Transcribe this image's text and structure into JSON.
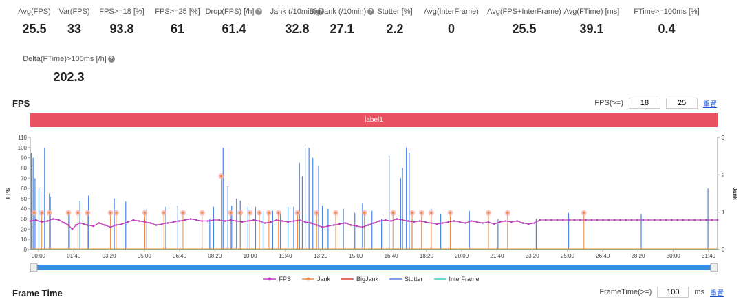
{
  "metrics": [
    {
      "label": "Avg(FPS)",
      "value": "25.5",
      "help": false
    },
    {
      "label": "Var(FPS)",
      "value": "33",
      "help": false
    },
    {
      "label": "FPS>=18 [%]",
      "value": "93.8",
      "help": false
    },
    {
      "label": "FPS>=25 [%]",
      "value": "61",
      "help": false
    },
    {
      "label": "Drop(FPS) [/h]",
      "value": "61.4",
      "help": true
    },
    {
      "label": "Jank (/10min)",
      "value": "32.8",
      "help": true
    },
    {
      "label": "BigJank (/10min)",
      "value": "27.1",
      "help": true
    },
    {
      "label": "Stutter [%]",
      "value": "2.2",
      "help": false
    },
    {
      "label": "Avg(InterFrame)",
      "value": "0",
      "help": false
    },
    {
      "label": "Avg(FPS+InterFrame)",
      "value": "25.5",
      "help": false
    },
    {
      "label": "Avg(FTime) [ms]",
      "value": "39.1",
      "help": false
    },
    {
      "label": "FTime>=100ms [%]",
      "value": "0.4",
      "help": false
    }
  ],
  "metric_extra": {
    "label": "Delta(FTime)>100ms [/h]",
    "value": "202.3"
  },
  "fps_section": {
    "title": "FPS",
    "threshold_label": "FPS(>=)",
    "threshold1": "18",
    "threshold2": "25",
    "reset_label": "重置"
  },
  "label_bar": "label1",
  "frametime_section": {
    "title": "Frame Time",
    "threshold_label": "FrameTime(>=)",
    "threshold": "100",
    "unit": "ms",
    "reset_label": "重置"
  },
  "chart_data": {
    "type": "line",
    "ylabel_left": "FPS",
    "ylabel_right": "Jank",
    "y_left_ticks": [
      0,
      10,
      20,
      30,
      40,
      50,
      60,
      70,
      80,
      90,
      100,
      110
    ],
    "y_right_ticks": [
      0,
      1,
      2,
      3
    ],
    "x_ticks": [
      "00:00",
      "01:40",
      "03:20",
      "05:00",
      "06:40",
      "08:20",
      "10:00",
      "11:40",
      "13:20",
      "15:00",
      "16:40",
      "18:20",
      "20:00",
      "21:40",
      "23:20",
      "25:00",
      "26:40",
      "28:20",
      "30:00",
      "31:40"
    ],
    "ylim_left": [
      0,
      110
    ],
    "ylim_right": [
      0,
      3
    ],
    "series": [
      {
        "name": "FPS",
        "color": "#c23fbf"
      },
      {
        "name": "Jank",
        "color": "#f08a3c"
      },
      {
        "name": "BigJank",
        "color": "#e23b3b"
      },
      {
        "name": "Stutter",
        "color": "#4a86e8"
      },
      {
        "name": "InterFrame",
        "color": "#3cc7c7"
      }
    ],
    "fps_points": [
      [
        0,
        28
      ],
      [
        30,
        29
      ],
      [
        60,
        27
      ],
      [
        90,
        28
      ],
      [
        120,
        30
      ],
      [
        150,
        29
      ],
      [
        180,
        26
      ],
      [
        200,
        24
      ],
      [
        220,
        20
      ],
      [
        240,
        24
      ],
      [
        260,
        26
      ],
      [
        280,
        25
      ],
      [
        300,
        24
      ],
      [
        330,
        23
      ],
      [
        360,
        26
      ],
      [
        390,
        24
      ],
      [
        420,
        22
      ],
      [
        450,
        24
      ],
      [
        480,
        25
      ],
      [
        510,
        27
      ],
      [
        540,
        29
      ],
      [
        570,
        28
      ],
      [
        600,
        27
      ],
      [
        630,
        26
      ],
      [
        660,
        24
      ],
      [
        690,
        25
      ],
      [
        720,
        26
      ],
      [
        750,
        27
      ],
      [
        780,
        28
      ],
      [
        810,
        29
      ],
      [
        840,
        30
      ],
      [
        870,
        29
      ],
      [
        900,
        28
      ],
      [
        930,
        28
      ],
      [
        960,
        29
      ],
      [
        990,
        29
      ],
      [
        1020,
        28
      ],
      [
        1050,
        29
      ],
      [
        1080,
        28
      ],
      [
        1110,
        27
      ],
      [
        1140,
        28
      ],
      [
        1170,
        29
      ],
      [
        1200,
        28
      ],
      [
        1230,
        26
      ],
      [
        1260,
        27
      ],
      [
        1290,
        29
      ],
      [
        1320,
        28
      ],
      [
        1350,
        27
      ],
      [
        1380,
        28
      ],
      [
        1410,
        29
      ],
      [
        1440,
        27
      ],
      [
        1470,
        26
      ],
      [
        1500,
        24
      ],
      [
        1530,
        22
      ],
      [
        1560,
        23
      ],
      [
        1590,
        24
      ],
      [
        1620,
        25
      ],
      [
        1650,
        26
      ],
      [
        1680,
        24
      ],
      [
        1710,
        23
      ],
      [
        1740,
        22
      ],
      [
        1770,
        24
      ],
      [
        1800,
        26
      ],
      [
        1830,
        28
      ],
      [
        1860,
        29
      ],
      [
        1890,
        28
      ],
      [
        1920,
        30
      ],
      [
        1950,
        29
      ],
      [
        1980,
        28
      ],
      [
        2010,
        27
      ],
      [
        2040,
        28
      ],
      [
        2070,
        27
      ],
      [
        2100,
        26
      ],
      [
        2130,
        25
      ],
      [
        2160,
        26
      ],
      [
        2190,
        27
      ],
      [
        2220,
        28
      ],
      [
        2250,
        27
      ],
      [
        2280,
        26
      ],
      [
        2310,
        28
      ],
      [
        2340,
        27
      ],
      [
        2370,
        26
      ],
      [
        2400,
        27
      ],
      [
        2430,
        25
      ],
      [
        2460,
        27
      ],
      [
        2490,
        28
      ],
      [
        2520,
        27
      ],
      [
        2550,
        28
      ],
      [
        2580,
        26
      ],
      [
        2610,
        25
      ],
      [
        2640,
        26
      ],
      [
        2670,
        29
      ],
      [
        2700,
        29
      ],
      [
        2730,
        29
      ],
      [
        2760,
        29
      ],
      [
        2790,
        29
      ],
      [
        2820,
        29
      ],
      [
        2850,
        29
      ],
      [
        2880,
        29
      ],
      [
        2910,
        29
      ],
      [
        2940,
        29
      ],
      [
        2970,
        29
      ],
      [
        3000,
        29
      ],
      [
        3030,
        29
      ],
      [
        3060,
        29
      ],
      [
        3090,
        29
      ],
      [
        3120,
        29
      ],
      [
        3150,
        29
      ],
      [
        3180,
        29
      ],
      [
        3210,
        29
      ],
      [
        3240,
        29
      ],
      [
        3270,
        29
      ],
      [
        3300,
        29
      ],
      [
        3330,
        29
      ],
      [
        3360,
        29
      ],
      [
        3390,
        29
      ],
      [
        3420,
        29
      ],
      [
        3450,
        29
      ],
      [
        3480,
        29
      ],
      [
        3510,
        29
      ],
      [
        3540,
        29
      ],
      [
        3570,
        29
      ],
      [
        3600,
        29
      ]
    ],
    "jank_points": [
      [
        20,
        36
      ],
      [
        60,
        36
      ],
      [
        100,
        36
      ],
      [
        200,
        36
      ],
      [
        250,
        36
      ],
      [
        300,
        36
      ],
      [
        420,
        36
      ],
      [
        450,
        36
      ],
      [
        600,
        36
      ],
      [
        700,
        36
      ],
      [
        800,
        36
      ],
      [
        900,
        36
      ],
      [
        1000,
        72
      ],
      [
        1050,
        36
      ],
      [
        1100,
        36
      ],
      [
        1150,
        36
      ],
      [
        1200,
        36
      ],
      [
        1250,
        36
      ],
      [
        1300,
        36
      ],
      [
        1400,
        36
      ],
      [
        1500,
        36
      ],
      [
        1600,
        36
      ],
      [
        1750,
        36
      ],
      [
        1900,
        36
      ],
      [
        2000,
        36
      ],
      [
        2050,
        36
      ],
      [
        2100,
        36
      ],
      [
        2200,
        36
      ],
      [
        2400,
        36
      ],
      [
        2500,
        36
      ],
      [
        2900,
        36
      ]
    ],
    "stutter_points": [
      [
        5,
        95
      ],
      [
        15,
        90
      ],
      [
        25,
        70
      ],
      [
        45,
        60
      ],
      [
        75,
        100
      ],
      [
        100,
        55
      ],
      [
        105,
        52
      ],
      [
        205,
        35
      ],
      [
        260,
        48
      ],
      [
        305,
        53
      ],
      [
        440,
        50
      ],
      [
        500,
        47
      ],
      [
        610,
        40
      ],
      [
        710,
        42
      ],
      [
        770,
        43
      ],
      [
        940,
        30
      ],
      [
        960,
        42
      ],
      [
        1010,
        100
      ],
      [
        1035,
        62
      ],
      [
        1055,
        43
      ],
      [
        1080,
        50
      ],
      [
        1100,
        48
      ],
      [
        1140,
        42
      ],
      [
        1180,
        42
      ],
      [
        1220,
        38
      ],
      [
        1270,
        38
      ],
      [
        1310,
        36
      ],
      [
        1350,
        42
      ],
      [
        1380,
        42
      ],
      [
        1410,
        85
      ],
      [
        1425,
        72
      ],
      [
        1440,
        100
      ],
      [
        1460,
        100
      ],
      [
        1480,
        90
      ],
      [
        1510,
        82
      ],
      [
        1530,
        43
      ],
      [
        1560,
        40
      ],
      [
        1640,
        40
      ],
      [
        1700,
        36
      ],
      [
        1740,
        45
      ],
      [
        1790,
        38
      ],
      [
        1840,
        30
      ],
      [
        1880,
        92
      ],
      [
        1940,
        70
      ],
      [
        1950,
        80
      ],
      [
        1970,
        100
      ],
      [
        1985,
        95
      ],
      [
        2000,
        30
      ],
      [
        2050,
        32
      ],
      [
        2100,
        40
      ],
      [
        2150,
        35
      ],
      [
        2300,
        38
      ],
      [
        2450,
        30
      ],
      [
        2650,
        30
      ],
      [
        2820,
        36
      ],
      [
        3200,
        35
      ],
      [
        3550,
        60
      ]
    ]
  }
}
